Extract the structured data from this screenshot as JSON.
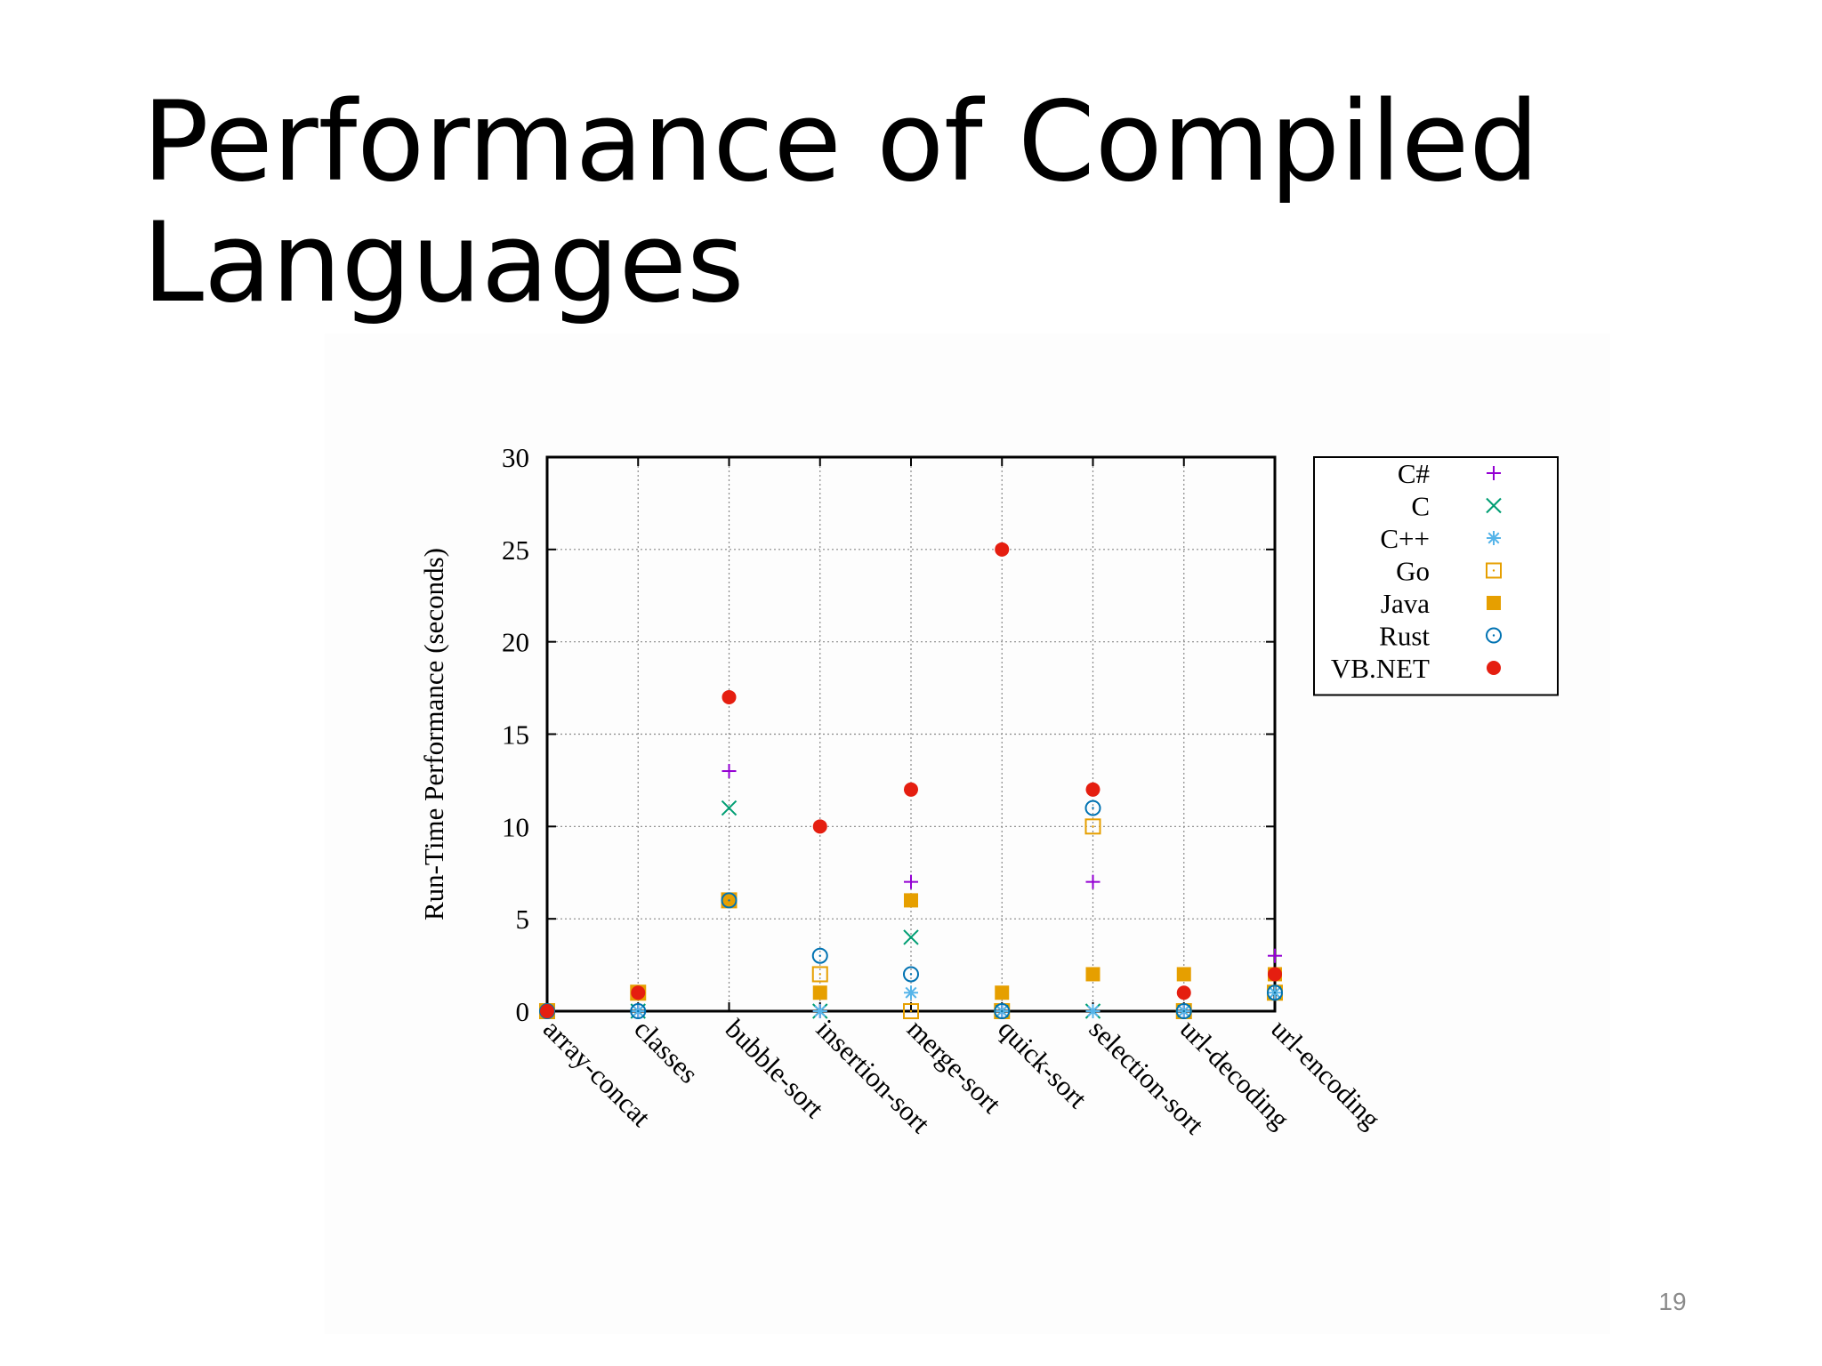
{
  "slide": {
    "title": "Performance of Compiled Languages",
    "page_number": "19"
  },
  "chart_data": {
    "type": "scatter",
    "title": "",
    "xlabel": "",
    "ylabel": "Run-Time Performance (seconds)",
    "categories": [
      "array-concat",
      "classes",
      "bubble-sort",
      "insertion-sort",
      "merge-sort",
      "quick-sort",
      "selection-sort",
      "url-decoding",
      "url-encoding"
    ],
    "ylim": [
      0,
      30
    ],
    "yticks": [
      0,
      5,
      10,
      15,
      20,
      25,
      30
    ],
    "grid": true,
    "legend_position": "outside-right",
    "series": [
      {
        "name": "C#",
        "marker": "plus",
        "color": "#9400d3",
        "values": [
          0,
          0,
          13,
          0,
          7,
          0,
          7,
          0,
          3
        ]
      },
      {
        "name": "C",
        "marker": "cross",
        "color": "#009e73",
        "values": [
          0,
          0,
          11,
          0,
          4,
          0,
          0,
          0,
          1
        ]
      },
      {
        "name": "C++",
        "marker": "star",
        "color": "#56b4e9",
        "values": [
          0,
          0,
          6,
          0,
          1,
          0,
          0,
          0,
          1
        ]
      },
      {
        "name": "Go",
        "marker": "open-square",
        "color": "#e69f00",
        "values": [
          0,
          1,
          6,
          2,
          0,
          0,
          10,
          0,
          1
        ]
      },
      {
        "name": "Java",
        "marker": "filled-square",
        "color": "#e69f00",
        "values": [
          0,
          1,
          6,
          1,
          6,
          1,
          2,
          2,
          2
        ]
      },
      {
        "name": "Rust",
        "marker": "open-circle-dot",
        "color": "#0072b2",
        "values": [
          0,
          0,
          6,
          3,
          2,
          0,
          11,
          0,
          1
        ]
      },
      {
        "name": "VB.NET",
        "marker": "filled-circle",
        "color": "#e51e10",
        "values": [
          0,
          1,
          17,
          10,
          12,
          25,
          12,
          1,
          2
        ]
      }
    ]
  }
}
